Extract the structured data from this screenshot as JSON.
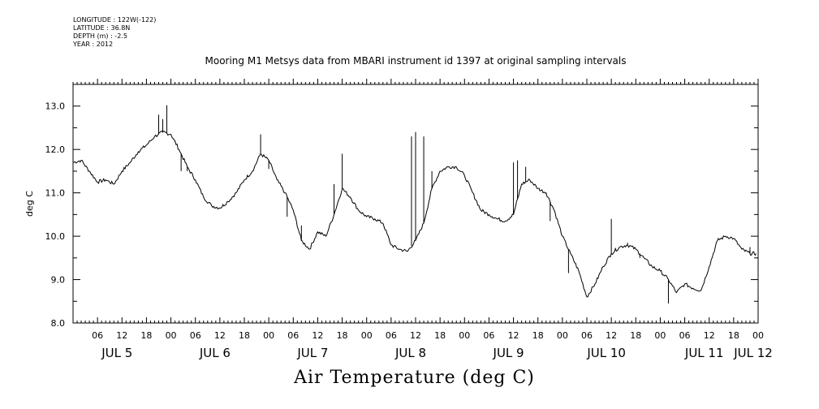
{
  "meta": {
    "longitude": "LONGITUDE : 122W(-122)",
    "latitude": "LATITUDE : 36.8N",
    "depth": "DEPTH (m) : -2.5",
    "year": "YEAR : 2012"
  },
  "chart_data": {
    "type": "line",
    "title": "Mooring M1 Metsys data from MBARI instrument id 1397 at original sampling intervals",
    "xlabel": "Air Temperature (deg C)",
    "ylabel": "deg C",
    "ylim": [
      8.0,
      13.5
    ],
    "xlim_hours": [
      0,
      168
    ],
    "yticks": [
      "8.0",
      "9.0",
      "10.0",
      "11.0",
      "12.0",
      "13.0"
    ],
    "hour_ticks": [
      "06",
      "12",
      "18",
      "00",
      "06",
      "12",
      "18",
      "00",
      "06",
      "12",
      "18",
      "00",
      "06",
      "12",
      "18",
      "00",
      "06",
      "12",
      "18",
      "00",
      "06",
      "12",
      "18",
      "00",
      "06",
      "12",
      "18",
      "00"
    ],
    "day_labels": [
      "JUL 5",
      "JUL 6",
      "JUL 7",
      "JUL 8",
      "JUL 9",
      "JUL 10",
      "JUL 11",
      "JUL 12"
    ],
    "grid": false,
    "legend": "none",
    "line_color": "#000000",
    "series": [
      {
        "x": [
          0,
          2,
          4,
          6,
          8,
          10,
          12,
          14,
          16,
          18,
          20,
          22,
          24,
          26,
          28,
          30,
          32,
          34,
          36,
          38,
          40,
          42,
          44,
          46,
          48,
          50,
          52,
          54,
          56,
          58,
          60,
          62,
          64,
          66,
          68,
          70,
          72,
          74,
          76,
          78,
          80,
          82,
          84,
          86,
          88,
          90,
          92,
          94,
          96,
          98,
          100,
          102,
          104,
          106,
          108,
          110,
          112,
          114,
          116,
          118,
          120,
          122,
          124,
          126,
          128,
          130,
          132,
          134,
          136,
          138,
          140,
          142,
          144,
          146,
          148,
          150,
          152,
          154,
          156,
          158,
          160,
          162,
          164,
          166,
          167.5
        ],
        "values": [
          11.7,
          11.75,
          11.5,
          11.25,
          11.3,
          11.2,
          11.5,
          11.7,
          11.95,
          12.1,
          12.3,
          12.4,
          12.35,
          12.0,
          11.6,
          11.3,
          10.9,
          10.7,
          10.65,
          10.8,
          11.0,
          11.3,
          11.5,
          11.9,
          11.75,
          11.3,
          11.0,
          10.6,
          9.9,
          9.7,
          10.1,
          10.0,
          10.5,
          11.1,
          10.9,
          10.6,
          10.45,
          10.4,
          10.3,
          9.8,
          9.7,
          9.65,
          9.9,
          10.3,
          11.1,
          11.5,
          11.6,
          11.6,
          11.4,
          11.0,
          10.6,
          10.5,
          10.4,
          10.35,
          10.5,
          11.2,
          11.3,
          11.1,
          11.0,
          10.6,
          10.0,
          9.6,
          9.2,
          8.6,
          8.9,
          9.3,
          9.6,
          9.75,
          9.8,
          9.7,
          9.5,
          9.3,
          9.2,
          9.0,
          8.7,
          8.9,
          8.8,
          8.75,
          9.3,
          9.9,
          10.0,
          9.95,
          9.7,
          9.6,
          9.6
        ]
      }
    ],
    "spikes": [
      {
        "x": 21.0,
        "y": 12.8
      },
      {
        "x": 22.0,
        "y": 12.7
      },
      {
        "x": 23.0,
        "y": 13.02
      },
      {
        "x": 25.0,
        "y": 12.2
      },
      {
        "x": 26.5,
        "y": 11.5
      },
      {
        "x": 28.0,
        "y": 11.5
      },
      {
        "x": 46.0,
        "y": 12.35
      },
      {
        "x": 48.0,
        "y": 11.55
      },
      {
        "x": 52.5,
        "y": 10.45
      },
      {
        "x": 56.0,
        "y": 10.25
      },
      {
        "x": 64.0,
        "y": 11.2
      },
      {
        "x": 66.0,
        "y": 11.9
      },
      {
        "x": 83.0,
        "y": 12.3
      },
      {
        "x": 84.0,
        "y": 12.4
      },
      {
        "x": 86.0,
        "y": 12.3
      },
      {
        "x": 88.0,
        "y": 11.5
      },
      {
        "x": 108.0,
        "y": 11.7
      },
      {
        "x": 109.0,
        "y": 11.75
      },
      {
        "x": 111.0,
        "y": 11.6
      },
      {
        "x": 117.0,
        "y": 10.35
      },
      {
        "x": 121.5,
        "y": 9.15
      },
      {
        "x": 123.5,
        "y": 9.3
      },
      {
        "x": 132.0,
        "y": 10.4
      },
      {
        "x": 136.0,
        "y": 9.85
      },
      {
        "x": 139.0,
        "y": 9.5
      },
      {
        "x": 146.0,
        "y": 8.45
      },
      {
        "x": 166.0,
        "y": 9.75
      }
    ]
  }
}
